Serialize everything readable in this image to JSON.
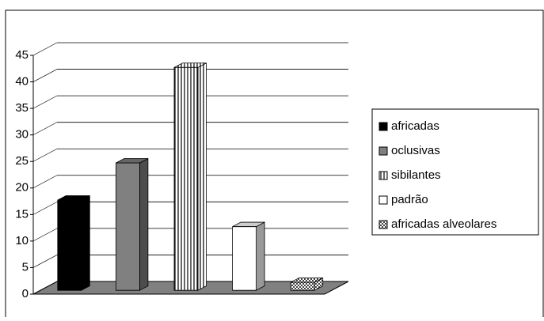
{
  "chart_data": {
    "type": "bar3d",
    "categories": [
      null
    ],
    "series": [
      {
        "name": "africadas",
        "color": "#000000",
        "pattern": "solid",
        "values": [
          17
        ]
      },
      {
        "name": "oclusivas",
        "color": "#808080",
        "pattern": "solid",
        "values": [
          24
        ]
      },
      {
        "name": "sibilantes",
        "color": "#ffffff",
        "pattern": "vertical-stripes",
        "values": [
          42
        ]
      },
      {
        "name": "padrão",
        "color": "#ffffff",
        "pattern": "solid",
        "values": [
          12
        ]
      },
      {
        "name": "africadas alveolares",
        "color": "#c0c0c0",
        "pattern": "checker",
        "values": [
          1.5
        ]
      }
    ],
    "ylim": [
      0,
      45
    ],
    "yticks": [
      0,
      5,
      10,
      15,
      20,
      25,
      30,
      35,
      40,
      45
    ],
    "grid": true,
    "legend": "right"
  }
}
